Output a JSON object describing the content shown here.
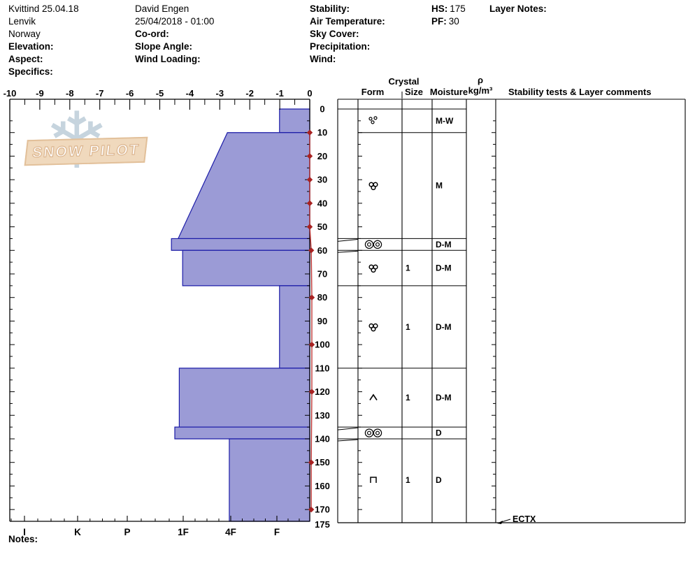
{
  "header": {
    "location_name": "Kvittind 25.04.18",
    "region": "Lenvik",
    "country": "Norway",
    "elevation_label": "Elevation:",
    "aspect_label": "Aspect:",
    "specifics_label": "Specifics:",
    "observer": "David Engen",
    "datetime": "25/04/2018 - 01:00",
    "coord_label": "Co-ord:",
    "slope_angle_label": "Slope Angle:",
    "wind_loading_label": "Wind Loading:",
    "stability_label": "Stability:",
    "air_temp_label": "Air Temperature:",
    "sky_cover_label": "Sky Cover:",
    "precipitation_label": "Precipitation:",
    "wind_label": "Wind:",
    "hs_label": "HS:",
    "hs_value": "175",
    "pf_label": "PF:",
    "pf_value": "30",
    "layer_notes_label": "Layer Notes:"
  },
  "logo": {
    "text": "SNOW PILOT"
  },
  "table_header": {
    "crystal": "Crystal",
    "form": "Form",
    "size": "Size",
    "moisture": "Moisture",
    "rho": "ρ",
    "rho_units": "kg/m³",
    "stability": "Stability tests & Layer comments"
  },
  "notes_label": "Notes:",
  "chart_data": {
    "type": "bar",
    "subtype": "snow-pit-hardness-profile",
    "title": "Snow profile Kvittind 25.04.18",
    "hs_total_depth_cm": 175,
    "temperature_axis": {
      "position": "top",
      "min": -10,
      "max": 0,
      "ticks": [
        -10,
        -9,
        -8,
        -7,
        -6,
        -5,
        -4,
        -3,
        -2,
        -1,
        0
      ]
    },
    "hardness_axis": {
      "position": "bottom",
      "ticks": [
        "I",
        "K",
        "P",
        "1F",
        "4F",
        "F"
      ],
      "note": "hand hardness, hardest (I) at left, softest (F) at right"
    },
    "depth_axis": {
      "unit": "cm",
      "max": 175,
      "ticks": [
        0,
        10,
        20,
        30,
        40,
        50,
        60,
        70,
        80,
        90,
        100,
        110,
        120,
        130,
        140,
        150,
        160,
        170,
        175
      ]
    },
    "layers": [
      {
        "top_cm": 0,
        "bottom_cm": 10,
        "hardness": "F",
        "hv_top": 0.92,
        "hv_bottom": 0.92,
        "grain_form": "melt-forms-loose",
        "size_mm": "",
        "moisture": "M-W"
      },
      {
        "top_cm": 10,
        "bottom_cm": 55,
        "hardness": "4F to 1F",
        "hv_top": 2.07,
        "hv_bottom": 3.09,
        "grain_form": "melt-forms-cluster",
        "size_mm": "",
        "moisture": "M"
      },
      {
        "top_cm": 55,
        "bottom_cm": 60,
        "hardness": "1F-P",
        "hv_top": 3.21,
        "hv_bottom": 3.21,
        "grain_form": "melt-freeze-crust",
        "size_mm": "",
        "moisture": "D-M",
        "leader": true
      },
      {
        "top_cm": 60,
        "bottom_cm": 75,
        "hardness": "1F",
        "hv_top": 3.01,
        "hv_bottom": 3.01,
        "grain_form": "melt-forms-cluster",
        "size_mm": "1",
        "moisture": "D-M"
      },
      {
        "top_cm": 75,
        "bottom_cm": 110,
        "hardness": "F",
        "hv_top": 0.92,
        "hv_bottom": 0.92,
        "grain_form": "melt-forms-cluster",
        "size_mm": "1",
        "moisture": "D-M"
      },
      {
        "top_cm": 110,
        "bottom_cm": 135,
        "hardness": "1F",
        "hv_top": 3.07,
        "hv_bottom": 3.07,
        "grain_form": "depth-hoar",
        "size_mm": "1",
        "moisture": "D-M"
      },
      {
        "top_cm": 135,
        "bottom_cm": 140,
        "hardness": "1F-P",
        "hv_top": 3.15,
        "hv_bottom": 3.15,
        "grain_form": "melt-freeze-crust",
        "size_mm": "",
        "moisture": "D",
        "leader": true
      },
      {
        "top_cm": 140,
        "bottom_cm": 175,
        "hardness": "4F",
        "hv_top": 2.03,
        "hv_bottom": 2.03,
        "grain_form": "facets",
        "size_mm": "1",
        "moisture": "D"
      }
    ],
    "temperature_profile": [
      {
        "depth_cm": 10,
        "temp_c": 0.0
      },
      {
        "depth_cm": 20,
        "temp_c": 0.0
      },
      {
        "depth_cm": 30,
        "temp_c": 0.0
      },
      {
        "depth_cm": 40,
        "temp_c": 0.0
      },
      {
        "depth_cm": 50,
        "temp_c": 0.0
      },
      {
        "depth_cm": 60,
        "temp_c": 0.05
      },
      {
        "depth_cm": 80,
        "temp_c": 0.07
      },
      {
        "depth_cm": 100,
        "temp_c": 0.07
      },
      {
        "depth_cm": 120,
        "temp_c": 0.07
      },
      {
        "depth_cm": 150,
        "temp_c": 0.05
      },
      {
        "depth_cm": 170,
        "temp_c": 0.05
      }
    ],
    "stability_tests": [
      {
        "label": "ECTX",
        "depth_cm": 175
      }
    ],
    "colors": {
      "layer_fill": "#9b9bd6",
      "layer_border": "#1c1ca8",
      "temp_line": "#bb3333",
      "temp_marker": "#a82222",
      "frame": "#000000"
    }
  }
}
